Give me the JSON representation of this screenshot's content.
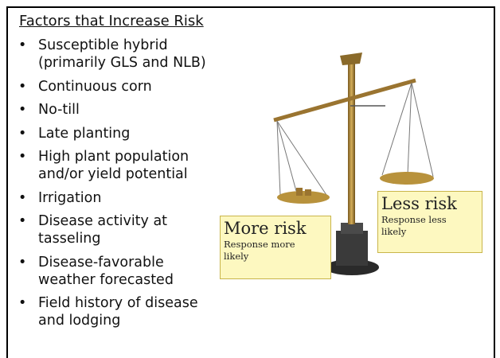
{
  "title": "Factors that Increase Risk",
  "bullets": [
    [
      "Susceptible hybrid",
      "(primarily GLS and NLB)"
    ],
    [
      "Continuous corn"
    ],
    [
      "No-till"
    ],
    [
      "Late planting"
    ],
    [
      "High plant population",
      "and/or yield potential"
    ],
    [
      "Irrigation"
    ],
    [
      "Disease activity at",
      "tasseling"
    ],
    [
      "Disease-favorable",
      "weather forecasted"
    ],
    [
      "Field history of disease",
      "and lodging"
    ]
  ],
  "callouts": [
    {
      "heading": "More risk",
      "text": [
        "Response more",
        "likely"
      ]
    },
    {
      "heading": "Less risk",
      "text": [
        "Response less",
        "likely"
      ]
    }
  ]
}
